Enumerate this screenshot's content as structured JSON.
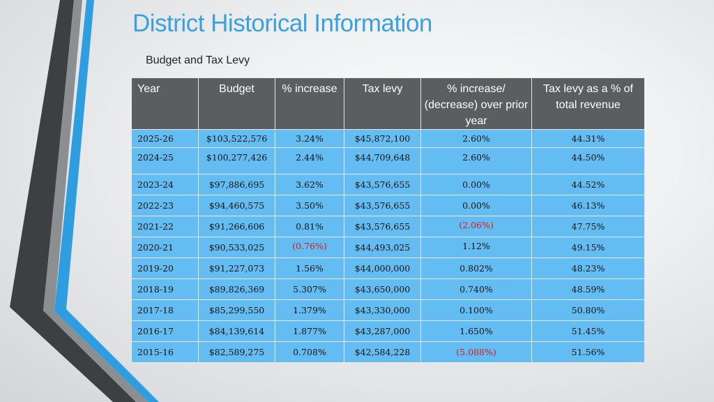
{
  "title": "District Historical Information",
  "subtitle": "Budget and Tax Levy",
  "colors": {
    "accent": "#3aa0de",
    "header_bg": "#5b5e61",
    "cell_bg": "#63bdf3",
    "negative": "#e01717"
  },
  "table": {
    "headers": [
      "Year",
      "Budget",
      "% increase",
      "Tax levy",
      "% increase/ (decrease) over prior year",
      "Tax levy as a % of total revenue"
    ],
    "rows": [
      [
        "2025-26",
        "$103,522,576",
        "3.24%",
        "$45,872,100",
        "2.60%",
        "44.31%"
      ],
      [
        "2024-25",
        "$100,277,426",
        "2.44%",
        "$44,709,648",
        "2.60%",
        "44.50%"
      ],
      [
        "2023-24",
        "$97,886,695",
        "3.62%",
        "$43,576,655",
        "0.00%",
        "44.52%"
      ],
      [
        "2022-23",
        "$94,460,575",
        "3.50%",
        "$43,576,655",
        "0.00%",
        "46.13%"
      ],
      [
        "2021-22",
        "$91,266,606",
        "0.81%",
        "$43,576,655",
        "(2.06%)",
        "47.75%"
      ],
      [
        "2020-21",
        "$90,533,025",
        "(0.76%)",
        "$44,493,025",
        "1.12%",
        "49.15%"
      ],
      [
        "2019-20",
        "$91,227,073",
        "1.56%",
        "$44,000,000",
        "0.802%",
        "48.23%"
      ],
      [
        "2018-19",
        "$89,826,369",
        "5.307%",
        "$43,650,000",
        "0.740%",
        "48.59%"
      ],
      [
        "2017-18",
        "$85,299,550",
        "1.379%",
        "$43,330,000",
        "0.100%",
        "50.80%"
      ],
      [
        "2016-17",
        "$84,139,614",
        "1.877%",
        "$43,287,000",
        "1.650%",
        "51.45%"
      ],
      [
        "2015-16",
        "$82,589,275",
        "0.708%",
        "$42,584,228",
        "(5.088%)",
        "51.56%"
      ]
    ]
  }
}
